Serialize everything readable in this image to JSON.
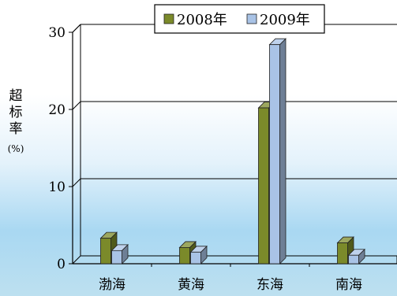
{
  "chart_data": {
    "type": "bar",
    "title": "",
    "xlabel": "",
    "ylabel": "超标率",
    "yunit": "(%)",
    "categories": [
      "渤海",
      "黄海",
      "东海",
      "南海"
    ],
    "series": [
      {
        "name": "2008年",
        "values": [
          3.3,
          2.1,
          20.2,
          2.7
        ]
      },
      {
        "name": "2009年",
        "values": [
          1.7,
          1.5,
          28.4,
          1.1
        ]
      }
    ],
    "ylim": [
      0,
      30
    ],
    "yticks": [
      0,
      10,
      20,
      30
    ],
    "grid": true,
    "legend": "top",
    "colors": {
      "2008年": "#7b8a2a",
      "2009年": "#a9c3e6",
      "grid": "#000000",
      "axis": "#000000"
    }
  }
}
